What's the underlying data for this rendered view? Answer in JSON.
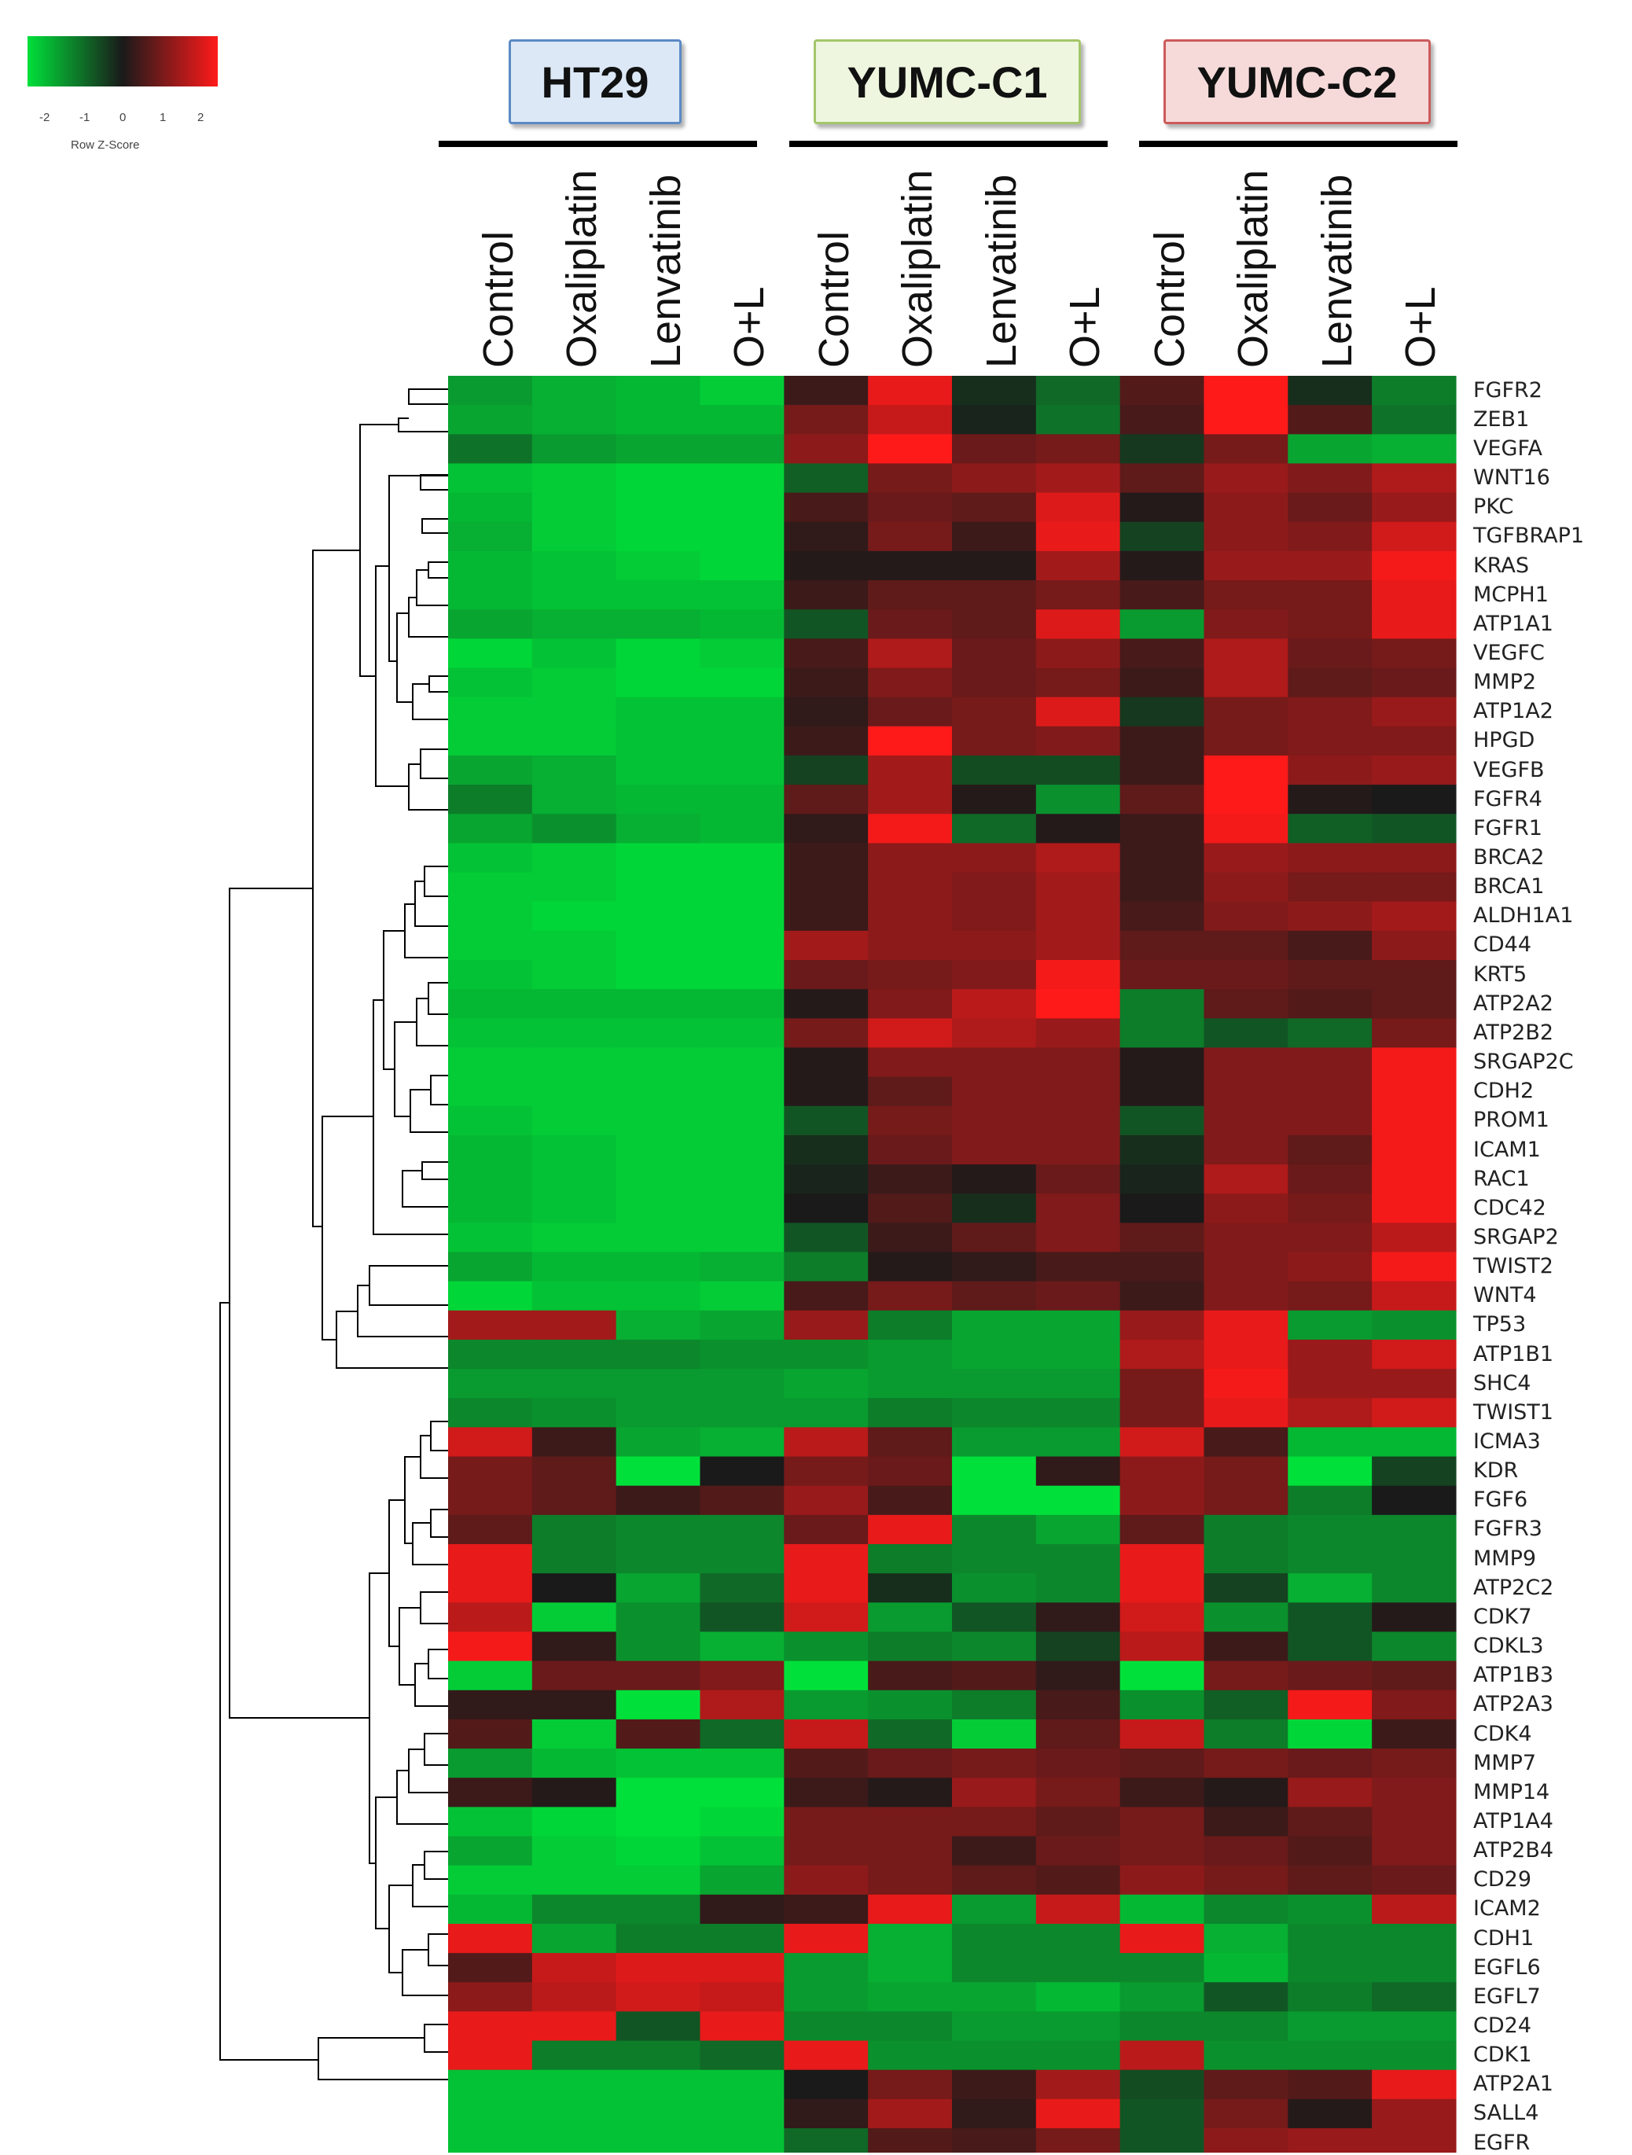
{
  "chart_data": {
    "type": "heatmap",
    "color_key": {
      "title": "Row Z-Score",
      "ticks": [
        "-2",
        "-1",
        "0",
        "1",
        "2"
      ],
      "low_color": "#00e03a",
      "mid_color": "#1a1a1a",
      "high_color": "#ff1a1a"
    },
    "groups": [
      "HT29",
      "YUMC-C1",
      "YUMC-C2"
    ],
    "group_colors": {
      "HT29": {
        "fill": "#dce8f6",
        "border": "#5b8ac4"
      },
      "YUMC-C1": {
        "fill": "#eef6df",
        "border": "#a4c66a"
      },
      "YUMC-C2": {
        "fill": "#f6dada",
        "border": "#cc5b5b"
      }
    },
    "conditions": [
      "Control",
      "Oxaliplatin",
      "Lenvatinib",
      "O+L"
    ],
    "columns": [
      "HT29 Control",
      "HT29 Oxaliplatin",
      "HT29 Lenvatinib",
      "HT29 O+L",
      "YUMC-C1 Control",
      "YUMC-C1 Oxaliplatin",
      "YUMC-C1 Lenvatinib",
      "YUMC-C1 O+L",
      "YUMC-C2 Control",
      "YUMC-C2 Oxaliplatin",
      "YUMC-C2 Lenvatinib",
      "YUMC-C2 O+L"
    ],
    "genes": [
      "FGFR2",
      "ZEB1",
      "VEGFA",
      "WNT16",
      "PKC",
      "TGFBRAP1",
      "KRAS",
      "MCPH1",
      "ATP1A1",
      "VEGFC",
      "MMP2",
      "ATP1A2",
      "HPGD",
      "VEGFB",
      "FGFR4",
      "FGFR1",
      "BRCA2",
      "BRCA1",
      "ALDH1A1",
      "CD44",
      "KRT5",
      "ATP2A2",
      "ATP2B2",
      "SRGAP2C",
      "CDH2",
      "PROM1",
      "ICAM1",
      "RAC1",
      "CDC42",
      "SRGAP2",
      "TWIST2",
      "WNT4",
      "TP53",
      "ATP1B1",
      "SHC4",
      "TWIST1",
      "ICMA3",
      "KDR",
      "FGF6",
      "FGFR3",
      "MMP9",
      "ATP2C2",
      "CDK7",
      "CDKL3",
      "ATP1B3",
      "ATP2A3",
      "CDK4",
      "MMP7",
      "MMP14",
      "ATP1A4",
      "ATP2B4",
      "CD29",
      "ICAM2",
      "CDH1",
      "EGFL6",
      "EGFL7",
      "CD24",
      "CDK1",
      "ATP2A1",
      "SALL4",
      "EGFR"
    ],
    "values": [
      [
        -1.3,
        -1.5,
        -1.6,
        -1.8,
        0.3,
        1.8,
        -0.2,
        -0.8,
        0.5,
        2.0,
        -0.2,
        -1.0
      ],
      [
        -1.4,
        -1.5,
        -1.6,
        -1.6,
        0.8,
        1.5,
        -0.1,
        -0.9,
        0.4,
        2.0,
        0.5,
        -0.9
      ],
      [
        -0.9,
        -1.3,
        -1.4,
        -1.4,
        1.0,
        2.0,
        0.7,
        0.8,
        -0.3,
        0.8,
        -1.4,
        -1.5
      ],
      [
        -1.7,
        -1.8,
        -1.9,
        -1.9,
        -0.7,
        0.8,
        1.0,
        1.2,
        0.6,
        1.1,
        0.9,
        1.3
      ],
      [
        -1.6,
        -1.8,
        -1.9,
        -1.9,
        0.4,
        0.7,
        0.6,
        1.7,
        0.1,
        1.0,
        0.7,
        1.1
      ],
      [
        -1.5,
        -1.8,
        -1.9,
        -1.9,
        0.2,
        0.8,
        0.3,
        1.8,
        -0.4,
        1.0,
        0.9,
        1.6
      ],
      [
        -1.6,
        -1.7,
        -1.8,
        -1.9,
        0.1,
        0.1,
        0.1,
        1.2,
        0.1,
        1.1,
        1.1,
        1.9
      ],
      [
        -1.6,
        -1.7,
        -1.7,
        -1.7,
        0.3,
        0.6,
        0.6,
        0.8,
        0.4,
        0.8,
        0.8,
        1.8
      ],
      [
        -1.4,
        -1.5,
        -1.5,
        -1.6,
        -0.6,
        0.7,
        0.6,
        1.7,
        -1.3,
        0.9,
        0.8,
        1.8
      ],
      [
        -1.9,
        -1.7,
        -1.9,
        -1.8,
        0.4,
        1.3,
        0.7,
        1.0,
        0.4,
        1.3,
        0.7,
        0.8
      ],
      [
        -1.7,
        -1.8,
        -1.9,
        -1.9,
        0.3,
        0.9,
        0.7,
        0.8,
        0.3,
        1.3,
        0.6,
        0.7
      ],
      [
        -1.8,
        -1.8,
        -1.7,
        -1.7,
        0.2,
        0.7,
        0.8,
        1.7,
        -0.3,
        0.8,
        0.9,
        1.1
      ],
      [
        -1.8,
        -1.8,
        -1.7,
        -1.7,
        0.3,
        2.0,
        0.8,
        0.9,
        0.3,
        0.8,
        0.9,
        0.9
      ],
      [
        -1.4,
        -1.5,
        -1.7,
        -1.7,
        -0.4,
        1.2,
        -0.5,
        -0.5,
        0.3,
        2.0,
        1.0,
        1.1
      ],
      [
        -1.0,
        -1.5,
        -1.6,
        -1.6,
        0.6,
        1.2,
        0.1,
        -1.2,
        0.6,
        2.0,
        0.1,
        0.0
      ],
      [
        -1.4,
        -1.2,
        -1.5,
        -1.6,
        0.2,
        1.9,
        -0.8,
        0.1,
        0.3,
        1.9,
        -0.7,
        -0.6
      ],
      [
        -1.7,
        -1.8,
        -1.9,
        -1.9,
        0.3,
        1.0,
        1.0,
        1.3,
        0.3,
        1.1,
        1.0,
        1.0
      ],
      [
        -1.8,
        -1.8,
        -1.9,
        -1.9,
        0.3,
        1.0,
        0.9,
        1.2,
        0.3,
        1.0,
        0.8,
        0.8
      ],
      [
        -1.8,
        -1.9,
        -1.9,
        -1.9,
        0.3,
        1.0,
        0.9,
        1.2,
        0.4,
        0.9,
        1.0,
        1.2
      ],
      [
        -1.8,
        -1.8,
        -1.9,
        -1.9,
        1.2,
        1.0,
        1.0,
        1.2,
        0.6,
        0.6,
        0.4,
        1.0
      ],
      [
        -1.7,
        -1.8,
        -1.9,
        -1.9,
        0.7,
        0.8,
        0.9,
        1.9,
        0.7,
        0.7,
        0.6,
        0.6
      ],
      [
        -1.6,
        -1.6,
        -1.6,
        -1.6,
        0.1,
        0.9,
        1.4,
        2.0,
        -1.0,
        0.6,
        0.5,
        0.6
      ],
      [
        -1.7,
        -1.7,
        -1.7,
        -1.7,
        0.8,
        1.6,
        1.3,
        1.1,
        -1.0,
        -0.6,
        -0.8,
        0.8
      ],
      [
        -1.8,
        -1.8,
        -1.8,
        -1.8,
        0.1,
        0.9,
        0.9,
        0.9,
        0.1,
        0.9,
        0.9,
        1.9
      ],
      [
        -1.8,
        -1.8,
        -1.8,
        -1.8,
        0.1,
        0.6,
        0.9,
        0.9,
        0.1,
        0.9,
        0.9,
        1.9
      ],
      [
        -1.7,
        -1.8,
        -1.8,
        -1.8,
        -0.6,
        0.8,
        0.9,
        0.9,
        -0.6,
        0.9,
        0.9,
        1.9
      ],
      [
        -1.6,
        -1.7,
        -1.8,
        -1.8,
        -0.2,
        0.7,
        0.9,
        0.9,
        -0.2,
        0.9,
        0.6,
        1.9
      ],
      [
        -1.6,
        -1.7,
        -1.8,
        -1.8,
        -0.1,
        0.3,
        0.1,
        0.7,
        -0.1,
        1.3,
        0.7,
        1.9
      ],
      [
        -1.6,
        -1.7,
        -1.8,
        -1.8,
        0.0,
        0.5,
        -0.2,
        0.9,
        0.0,
        1.0,
        0.8,
        1.9
      ],
      [
        -1.7,
        -1.8,
        -1.8,
        -1.8,
        -0.6,
        0.3,
        0.6,
        0.9,
        0.6,
        0.9,
        0.9,
        1.4
      ],
      [
        -1.4,
        -1.6,
        -1.6,
        -1.5,
        -1.0,
        0.1,
        0.2,
        0.4,
        0.4,
        0.9,
        1.0,
        1.9
      ],
      [
        -1.9,
        -1.7,
        -1.7,
        -1.8,
        0.4,
        0.8,
        0.6,
        0.7,
        0.3,
        0.9,
        0.8,
        1.5
      ],
      [
        1.2,
        1.2,
        -1.5,
        -1.4,
        1.1,
        -1.0,
        -1.4,
        -1.4,
        1.1,
        1.8,
        -1.3,
        -1.2
      ],
      [
        -1.1,
        -1.1,
        -1.1,
        -1.2,
        -1.2,
        -1.3,
        -1.4,
        -1.4,
        1.3,
        1.8,
        1.1,
        1.6
      ],
      [
        -1.3,
        -1.3,
        -1.3,
        -1.3,
        -1.4,
        -1.3,
        -1.3,
        -1.3,
        0.8,
        1.9,
        1.1,
        1.1
      ],
      [
        -1.1,
        -1.2,
        -1.3,
        -1.3,
        -1.3,
        -1.0,
        -1.1,
        -1.1,
        0.8,
        1.8,
        1.3,
        1.6
      ],
      [
        1.6,
        0.3,
        -1.4,
        -1.5,
        1.4,
        0.6,
        -1.3,
        -1.3,
        1.6,
        0.4,
        -1.6,
        -1.6
      ],
      [
        0.8,
        0.6,
        -2.0,
        0.0,
        0.8,
        0.7,
        -2.0,
        0.2,
        1.0,
        0.8,
        -2.4,
        -0.4
      ],
      [
        0.8,
        0.6,
        0.3,
        0.5,
        1.1,
        0.4,
        -2.4,
        -2.4,
        1.0,
        0.8,
        -1.0,
        0.0
      ],
      [
        0.6,
        -1.0,
        -1.1,
        -1.1,
        0.7,
        1.8,
        -1.1,
        -1.4,
        0.6,
        -1.0,
        -1.1,
        -1.1
      ],
      [
        1.8,
        -1.0,
        -1.1,
        -1.1,
        1.8,
        -1.0,
        -1.1,
        -1.1,
        1.8,
        -1.0,
        -1.1,
        -1.1
      ],
      [
        1.8,
        0.0,
        -1.4,
        -0.8,
        1.8,
        -0.2,
        -1.2,
        -1.1,
        1.8,
        -0.4,
        -1.5,
        -1.1
      ],
      [
        1.4,
        -1.8,
        -1.2,
        -0.6,
        1.6,
        -1.3,
        -0.6,
        0.2,
        1.6,
        -1.2,
        -0.6,
        0.1
      ],
      [
        1.9,
        0.2,
        -1.2,
        -1.5,
        -1.2,
        -1.0,
        -1.1,
        -0.4,
        1.4,
        0.3,
        -0.6,
        -1.1
      ],
      [
        -1.8,
        0.7,
        0.7,
        0.9,
        -2.2,
        0.4,
        0.5,
        0.2,
        -2.2,
        0.8,
        0.7,
        0.6
      ],
      [
        0.2,
        0.2,
        -2.0,
        1.3,
        -1.3,
        -1.2,
        -1.0,
        0.4,
        -1.2,
        -0.7,
        1.9,
        0.9
      ],
      [
        0.5,
        -1.8,
        0.5,
        -0.8,
        1.5,
        -0.8,
        -1.8,
        0.6,
        1.5,
        -1.0,
        -1.9,
        0.3
      ],
      [
        -1.3,
        -1.6,
        -1.7,
        -1.7,
        0.5,
        0.7,
        0.8,
        0.7,
        0.6,
        0.8,
        0.7,
        0.8
      ],
      [
        0.3,
        0.1,
        -2.0,
        -2.3,
        0.3,
        0.1,
        1.1,
        0.8,
        0.3,
        0.1,
        1.1,
        0.9
      ],
      [
        -1.7,
        -1.9,
        -2.0,
        -1.9,
        0.8,
        0.8,
        0.8,
        0.6,
        0.8,
        0.3,
        0.6,
        0.9
      ],
      [
        -1.4,
        -1.8,
        -1.9,
        -1.7,
        0.8,
        0.8,
        0.3,
        0.7,
        0.8,
        0.7,
        0.5,
        0.9
      ],
      [
        -1.8,
        -1.8,
        -1.8,
        -1.4,
        1.0,
        0.8,
        0.6,
        0.5,
        1.0,
        0.8,
        0.6,
        0.7
      ],
      [
        -1.6,
        -1.1,
        -1.1,
        0.2,
        0.3,
        1.8,
        -1.3,
        1.5,
        -1.6,
        -1.1,
        -1.2,
        1.4
      ],
      [
        1.8,
        -1.4,
        -1.0,
        -1.0,
        1.8,
        -1.5,
        -1.1,
        -1.1,
        1.8,
        -1.5,
        -1.1,
        -1.1
      ],
      [
        0.5,
        1.5,
        1.7,
        1.7,
        -1.3,
        -1.5,
        -1.1,
        -1.1,
        -1.1,
        -1.6,
        -1.1,
        -1.1
      ],
      [
        1.0,
        1.4,
        1.6,
        1.5,
        -1.3,
        -1.4,
        -1.4,
        -1.6,
        -1.3,
        -0.6,
        -1.0,
        -0.8
      ],
      [
        1.8,
        1.8,
        -0.6,
        1.8,
        -1.1,
        -1.1,
        -1.3,
        -1.3,
        -1.1,
        -1.1,
        -1.3,
        -1.3
      ],
      [
        1.8,
        -1.0,
        -1.0,
        -0.8,
        1.8,
        -1.2,
        -1.2,
        -1.2,
        1.4,
        -1.2,
        -1.2,
        -1.2
      ],
      [
        -1.7,
        -1.7,
        -1.7,
        -1.7,
        0.0,
        0.8,
        0.3,
        1.2,
        -0.5,
        0.6,
        0.5,
        1.8
      ],
      [
        -1.7,
        -1.7,
        -1.7,
        -1.7,
        0.2,
        1.2,
        0.2,
        1.8,
        -0.6,
        0.8,
        0.1,
        1.1
      ],
      [
        -1.7,
        -1.7,
        -1.7,
        -1.7,
        -0.8,
        0.5,
        0.4,
        0.8,
        -0.6,
        1.0,
        1.1,
        1.1
      ]
    ]
  }
}
